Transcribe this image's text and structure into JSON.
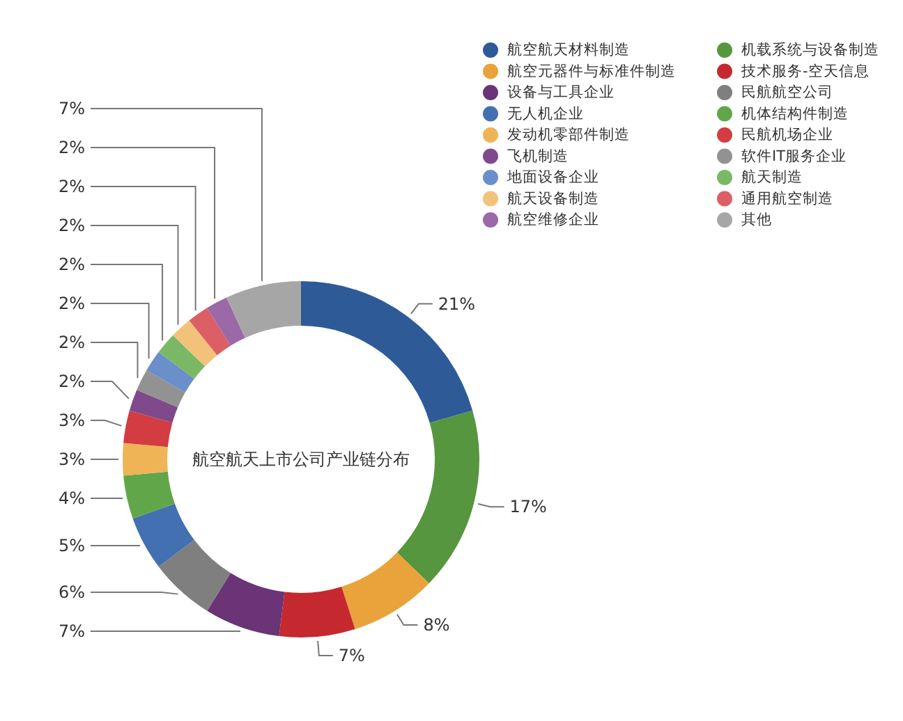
{
  "chart_data": {
    "type": "donut",
    "title": "航空航天上市公司产业链分布",
    "categories": [
      "航空航天材料制造",
      "机载系统与设备制造",
      "航空元器件与标准件制造",
      "技术服务-空天信息",
      "设备与工具企业",
      "民航航空公司",
      "无人机企业",
      "机体结构件制造",
      "发动机零部件制造",
      "民航机场企业",
      "飞机制造",
      "软件IT服务企业",
      "地面设备企业",
      "航天制造",
      "航天设备制造",
      "通用航空制造",
      "航空维修企业",
      "其他"
    ],
    "values": [
      21,
      17,
      8,
      7,
      7,
      6,
      5,
      4,
      3,
      3,
      2,
      2,
      2,
      2,
      2,
      2,
      2,
      7
    ],
    "value_labels": [
      "21%",
      "17%",
      "8%",
      "7%",
      "7%",
      "6%",
      "5%",
      "4%",
      "3%",
      "3%",
      "2%",
      "2%",
      "2%",
      "2%",
      "2%",
      "2%",
      "2%",
      "7%"
    ],
    "colors": [
      "#2e5a97",
      "#56963f",
      "#e9a33a",
      "#c5282f",
      "#6b3477",
      "#7f7f7f",
      "#4370b0",
      "#62a64a",
      "#eeb456",
      "#d33c40",
      "#7f4a8c",
      "#929292",
      "#6a8fcb",
      "#7bb865",
      "#f2c27a",
      "#dc5f65",
      "#9b68a8",
      "#a6a6a6"
    ],
    "legend": "top right"
  }
}
